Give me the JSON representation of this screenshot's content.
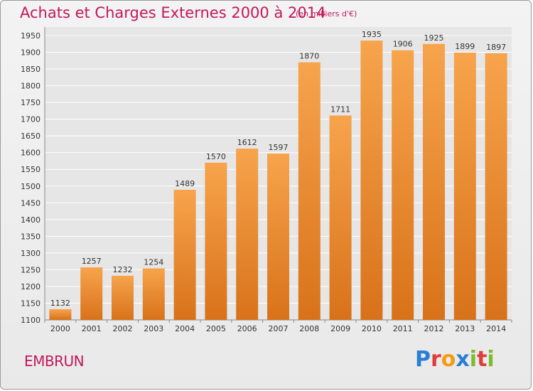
{
  "title": "Achats et Charges Externes 2000 à 2014",
  "subtitle": "(en milliers d'€)",
  "commune": "EMBRUN",
  "logo": {
    "text": "Proxiti",
    "letters": [
      {
        "ch": "P",
        "color": "#2a7fd4"
      },
      {
        "ch": "r",
        "color": "#e23c3c"
      },
      {
        "ch": "o",
        "color": "#f39c12"
      },
      {
        "ch": "x",
        "color": "#2a7fd4"
      },
      {
        "ch": "i",
        "color": "#7dbb2e"
      },
      {
        "ch": "t",
        "color": "#e23c3c"
      },
      {
        "ch": "i",
        "color": "#7dbb2e"
      }
    ]
  },
  "colors": {
    "bar_light": "#f7a44c",
    "bar_dark": "#d8721a",
    "title": "#c2185b",
    "grid": "#ffffff"
  },
  "chart_data": {
    "type": "bar",
    "categories": [
      "2000",
      "2001",
      "2002",
      "2003",
      "2004",
      "2005",
      "2006",
      "2007",
      "2008",
      "2009",
      "2010",
      "2011",
      "2012",
      "2013",
      "2014"
    ],
    "values": [
      1132,
      1257,
      1232,
      1254,
      1489,
      1570,
      1612,
      1597,
      1870,
      1711,
      1935,
      1906,
      1925,
      1899,
      1897
    ],
    "ylim": [
      1100,
      1950
    ],
    "yticks": [
      1100,
      1150,
      1200,
      1250,
      1300,
      1350,
      1400,
      1450,
      1500,
      1550,
      1600,
      1650,
      1700,
      1750,
      1800,
      1850,
      1900,
      1950
    ],
    "grid": true,
    "data_labels": true
  }
}
